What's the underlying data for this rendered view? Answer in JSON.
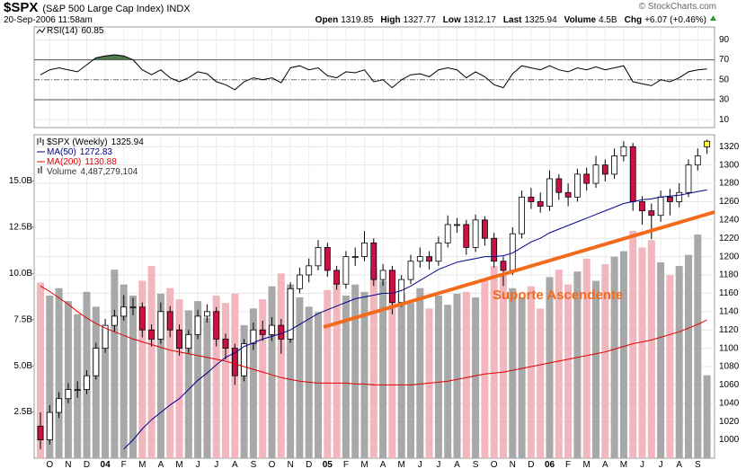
{
  "header": {
    "symbol": "$SPX",
    "name": "(S&P 500 Large Cap Index) INDX",
    "copyright": "© StockCharts.com",
    "datetime": "20-Sep-2006 11:58am",
    "quote": [
      {
        "label": "Open",
        "value": 1319.85
      },
      {
        "label": "High",
        "value": 1327.77
      },
      {
        "label": "Low",
        "value": 1312.17
      },
      {
        "label": "Last",
        "value": 1325.94
      },
      {
        "label": "Volume",
        "value": "4.5B"
      },
      {
        "label": "Chg",
        "value": "+6.07 (+0.46%)"
      }
    ]
  },
  "chart_data": [
    {
      "type": "line",
      "ylim": [
        2,
        103
      ],
      "yticks": [
        90,
        70,
        50,
        30,
        10
      ],
      "overbought": 70,
      "oversold": 30,
      "midline": 50,
      "fill_color": "#4f7a4f",
      "series": [
        {
          "name": "RSI(14)",
          "color": "#000000",
          "values": [
            55,
            60,
            62,
            60,
            58,
            65,
            72,
            74,
            75,
            74,
            70,
            60,
            55,
            60,
            52,
            48,
            52,
            58,
            56,
            48,
            45,
            40,
            48,
            52,
            50,
            52,
            47,
            62,
            64,
            60,
            62,
            54,
            52,
            58,
            57,
            60,
            48,
            50,
            42,
            50,
            55,
            56,
            53,
            60,
            62,
            60,
            52,
            58,
            53,
            45,
            42,
            56,
            64,
            62,
            60,
            64,
            60,
            58,
            62,
            60,
            63,
            60,
            62,
            64,
            48,
            46,
            44,
            50,
            48,
            52,
            58,
            60,
            60.85
          ]
        }
      ]
    },
    {
      "type": "candlestick",
      "grid": true,
      "ylim": [
        980,
        1333
      ],
      "yticks": [
        1000,
        1020,
        1040,
        1060,
        1080,
        1100,
        1120,
        1140,
        1160,
        1180,
        1200,
        1220,
        1240,
        1260,
        1280,
        1300,
        1320
      ],
      "categories": [
        null,
        "O",
        null,
        "N",
        null,
        "D",
        null,
        "04",
        null,
        "F",
        null,
        "M",
        null,
        "A",
        null,
        "M",
        null,
        "J",
        null,
        "J",
        null,
        "A",
        null,
        "S",
        null,
        "O",
        null,
        "N",
        null,
        "D",
        null,
        "05",
        null,
        "F",
        null,
        "M",
        null,
        "A",
        null,
        "M",
        null,
        "J",
        null,
        "J",
        null,
        "A",
        null,
        "S",
        null,
        "O",
        null,
        "N",
        null,
        "D",
        null,
        "06",
        null,
        "F",
        null,
        "M",
        null,
        "A",
        null,
        "M",
        null,
        "J",
        null,
        "J",
        null,
        "A",
        null,
        "S",
        null
      ],
      "price": {
        "name": "$SPX (Weekly)",
        "up_color": "#ffffff",
        "down_color": "#cc1144",
        "last_color": "#ffff44",
        "open": [
          1015,
          1000,
          1030,
          1045,
          1055,
          1055,
          1070,
          1100,
          1125,
          1135,
          1145,
          1145,
          1120,
          1110,
          1140,
          1120,
          1100,
          1115,
          1135,
          1140,
          1110,
          1100,
          1070,
          1105,
          1120,
          1115,
          1125,
          1110,
          1165,
          1180,
          1190,
          1210,
          1185,
          1170,
          1200,
          1200,
          1215,
          1175,
          1185,
          1150,
          1175,
          1195,
          1200,
          1195,
          1215,
          1235,
          1235,
          1210,
          1240,
          1220,
          1195,
          1185,
          1225,
          1265,
          1260,
          1255,
          1285,
          1270,
          1265,
          1290,
          1280,
          1300,
          1290,
          1310,
          1320,
          1260,
          1250,
          1245,
          1265,
          1260,
          1270,
          1300,
          1319.85
        ],
        "high": [
          1030,
          1038,
          1052,
          1062,
          1064,
          1076,
          1106,
          1132,
          1142,
          1158,
          1155,
          1150,
          1126,
          1150,
          1146,
          1126,
          1120,
          1142,
          1148,
          1145,
          1116,
          1105,
          1110,
          1128,
          1130,
          1134,
          1132,
          1172,
          1188,
          1198,
          1218,
          1215,
          1190,
          1206,
          1210,
          1228,
          1220,
          1192,
          1190,
          1180,
          1202,
          1210,
          1206,
          1222,
          1245,
          1242,
          1240,
          1246,
          1244,
          1226,
          1200,
          1232,
          1272,
          1275,
          1270,
          1294,
          1290,
          1280,
          1296,
          1297,
          1310,
          1306,
          1318,
          1326,
          1324,
          1266,
          1258,
          1272,
          1274,
          1280,
          1306,
          1318,
          1327.77
        ],
        "low": [
          990,
          995,
          1024,
          1040,
          1046,
          1050,
          1066,
          1095,
          1118,
          1130,
          1136,
          1112,
          1102,
          1105,
          1112,
          1092,
          1094,
          1110,
          1128,
          1102,
          1088,
          1060,
          1064,
          1098,
          1108,
          1108,
          1094,
          1106,
          1160,
          1172,
          1185,
          1178,
          1164,
          1165,
          1190,
          1195,
          1168,
          1168,
          1137,
          1145,
          1170,
          1188,
          1186,
          1190,
          1210,
          1226,
          1202,
          1205,
          1212,
          1188,
          1168,
          1180,
          1220,
          1252,
          1248,
          1250,
          1262,
          1255,
          1260,
          1272,
          1275,
          1282,
          1285,
          1304,
          1250,
          1235,
          1219,
          1238,
          1245,
          1254,
          1265,
          1294,
          1312.17
        ],
        "close": [
          1000,
          1030,
          1045,
          1055,
          1055,
          1070,
          1100,
          1125,
          1135,
          1145,
          1145,
          1120,
          1110,
          1140,
          1120,
          1100,
          1115,
          1135,
          1140,
          1110,
          1100,
          1070,
          1105,
          1120,
          1115,
          1125,
          1110,
          1165,
          1180,
          1190,
          1210,
          1185,
          1170,
          1200,
          1200,
          1215,
          1175,
          1185,
          1150,
          1175,
          1195,
          1200,
          1195,
          1215,
          1235,
          1235,
          1210,
          1240,
          1220,
          1195,
          1185,
          1225,
          1265,
          1260,
          1255,
          1285,
          1270,
          1265,
          1290,
          1280,
          1300,
          1290,
          1310,
          1320,
          1260,
          1250,
          1245,
          1265,
          1260,
          1270,
          1300,
          1310,
          1325.94
        ]
      },
      "overlays": [
        {
          "name": "MA(50)",
          "color": "#00008b",
          "values": [
            null,
            null,
            null,
            null,
            null,
            null,
            null,
            null,
            null,
            990,
            1000,
            1012,
            1022,
            1030,
            1038,
            1045,
            1055,
            1065,
            1073,
            1082,
            1090,
            1095,
            1102,
            1106,
            1110,
            1113,
            1116,
            1120,
            1126,
            1132,
            1138,
            1142,
            1146,
            1150,
            1154,
            1156,
            1158,
            1160,
            1160,
            1163,
            1168,
            1174,
            1180,
            1186,
            1190,
            1194,
            1196,
            1198,
            1200,
            1200,
            1201,
            1204,
            1210,
            1216,
            1220,
            1226,
            1230,
            1234,
            1238,
            1242,
            1246,
            1250,
            1254,
            1258,
            1260,
            1262,
            1263,
            1265,
            1266,
            1267,
            1269,
            1271,
            1272.83
          ]
        },
        {
          "name": "MA(200)",
          "color": "#dd0000",
          "values": [
            1168,
            1162,
            1155,
            1148,
            1140,
            1133,
            1127,
            1122,
            1118,
            1114,
            1110,
            1107,
            1104,
            1101,
            1098,
            1096,
            1094,
            1092,
            1090,
            1088,
            1086,
            1083,
            1080,
            1077,
            1074,
            1071,
            1068,
            1066,
            1064,
            1063,
            1062,
            1062,
            1062,
            1062,
            1061,
            1061,
            1060,
            1060,
            1060,
            1060,
            1060,
            1061,
            1062,
            1063,
            1064,
            1066,
            1068,
            1070,
            1072,
            1073,
            1074,
            1076,
            1078,
            1080,
            1082,
            1084,
            1086,
            1088,
            1090,
            1092,
            1094,
            1096,
            1099,
            1102,
            1105,
            1107,
            1109,
            1112,
            1115,
            1118,
            1122,
            1126,
            1130.88
          ]
        }
      ],
      "volume": {
        "name": "Volume",
        "legend_value": "4,487,279,104",
        "up_color": "#a8a8a8",
        "down_color": "#f2b6bf",
        "vlim": [
          0,
          17.5
        ],
        "vticks": [
          {
            "value": 2.5,
            "label": "2.5B"
          },
          {
            "value": 5,
            "label": "5.0B"
          },
          {
            "value": 7.5,
            "label": "7.5B"
          },
          {
            "value": 10,
            "label": "10.0B"
          },
          {
            "value": 12.5,
            "label": "12.5B"
          },
          {
            "value": 15,
            "label": "15.0B"
          }
        ],
        "values": [
          9.5,
          8.8,
          9.2,
          8.5,
          7.8,
          9.0,
          8.2,
          7.0,
          10.2,
          9.4,
          8.8,
          9.6,
          10.4,
          8.9,
          9.2,
          8.6,
          8.0,
          8.5,
          7.6,
          8.8,
          8.4,
          8.9,
          7.2,
          8.1,
          8.6,
          9.3,
          10.0,
          9.4,
          8.7,
          8.2,
          7.9,
          9.1,
          9.5,
          8.8,
          9.4,
          9.0,
          10.3,
          9.6,
          10.2,
          8.9,
          8.4,
          9.2,
          8.1,
          8.8,
          8.3,
          8.9,
          9.0,
          8.7,
          9.6,
          10.4,
          10.0,
          9.2,
          8.7,
          9.3,
          8.1,
          9.8,
          10.2,
          9.4,
          10.1,
          10.8,
          9.6,
          10.5,
          10.9,
          11.2,
          12.3,
          11.4,
          11.8,
          10.6,
          9.9,
          10.4,
          11.0,
          12.1,
          4.487279104
        ]
      },
      "annotation": "Suporte Ascendente",
      "annotation_color": "#f26b1d"
    }
  ]
}
